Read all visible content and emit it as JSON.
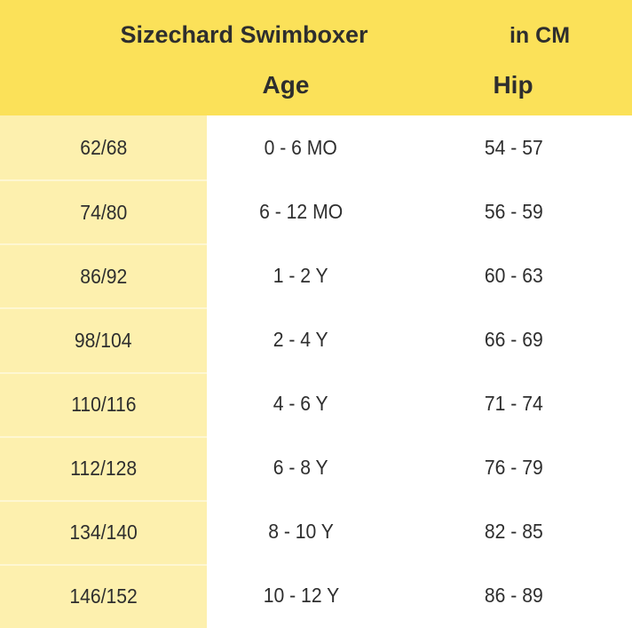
{
  "table": {
    "title": "Sizechard Swimboxer",
    "unit_label": "in CM",
    "columns": {
      "age": "Age",
      "hip": "Hip"
    },
    "rows": [
      {
        "size": "62/68",
        "age": "0 - 6 MO",
        "hip": "54 - 57"
      },
      {
        "size": "74/80",
        "age": "6 - 12 MO",
        "hip": "56 - 59"
      },
      {
        "size": "86/92",
        "age": "1 - 2 Y",
        "hip": "60 - 63"
      },
      {
        "size": "98/104",
        "age": "2 - 4 Y",
        "hip": "66 - 69"
      },
      {
        "size": "110/116",
        "age": "4 - 6 Y",
        "hip": "71 - 74"
      },
      {
        "size": "112/128",
        "age": "6 - 8 Y",
        "hip": "76 - 79"
      },
      {
        "size": "134/140",
        "age": "8 - 10 Y",
        "hip": "82 - 85"
      },
      {
        "size": "146/152",
        "age": "10 - 12 Y",
        "hip": "86 - 89"
      }
    ]
  },
  "colors": {
    "header_bg": "#fbe159",
    "size_col_bg": "#fdf0ae",
    "divider": "#fef7d2",
    "body_bg": "#ffffff",
    "text": "#2e2e2e"
  }
}
